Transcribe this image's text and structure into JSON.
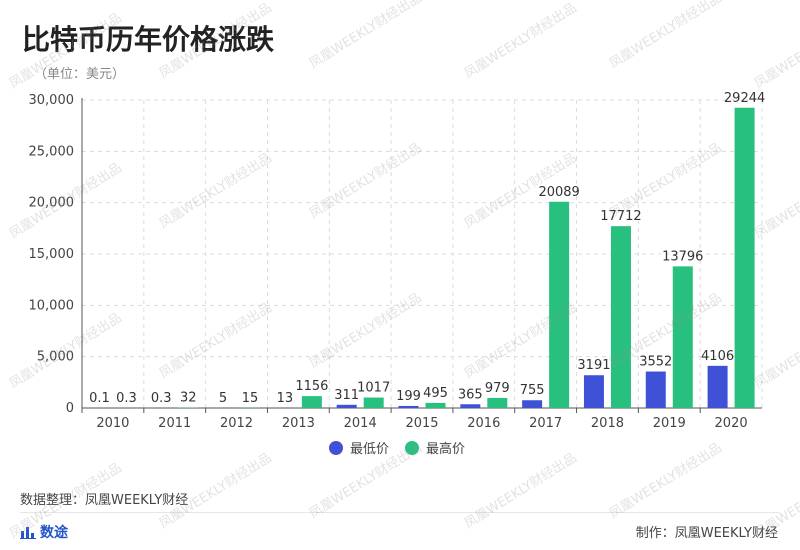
{
  "title": "比特币历年价格涨跌",
  "subtitle": "（单位：美元）",
  "source": "数据整理：凤凰WEEKLY财经",
  "brand": "数途",
  "credit": "制作：凤凰WEEKLY财经",
  "watermark": "凤凰WEEKLY财经出品",
  "icons": {
    "brand": "bar-chart-icon"
  },
  "colors": {
    "low": "#3f51d6",
    "high": "#28c07f"
  },
  "chart_data": {
    "type": "bar",
    "categories": [
      "2010",
      "2011",
      "2012",
      "2013",
      "2014",
      "2015",
      "2016",
      "2017",
      "2018",
      "2019",
      "2020"
    ],
    "series": [
      {
        "name": "最低价",
        "values": [
          0.1,
          0.3,
          5,
          13,
          311,
          199,
          365,
          755,
          3191,
          3552,
          4106
        ]
      },
      {
        "name": "最高价",
        "values": [
          0.3,
          32,
          15,
          1156,
          1017,
          495,
          979,
          20089,
          17712,
          13796,
          29244
        ]
      }
    ],
    "ylim": [
      0,
      30000
    ],
    "yticks": [
      "0",
      "5,000",
      "10,000",
      "15,000",
      "20,000",
      "25,000",
      "30,000"
    ],
    "legend": "bottom-center",
    "grid": true
  }
}
